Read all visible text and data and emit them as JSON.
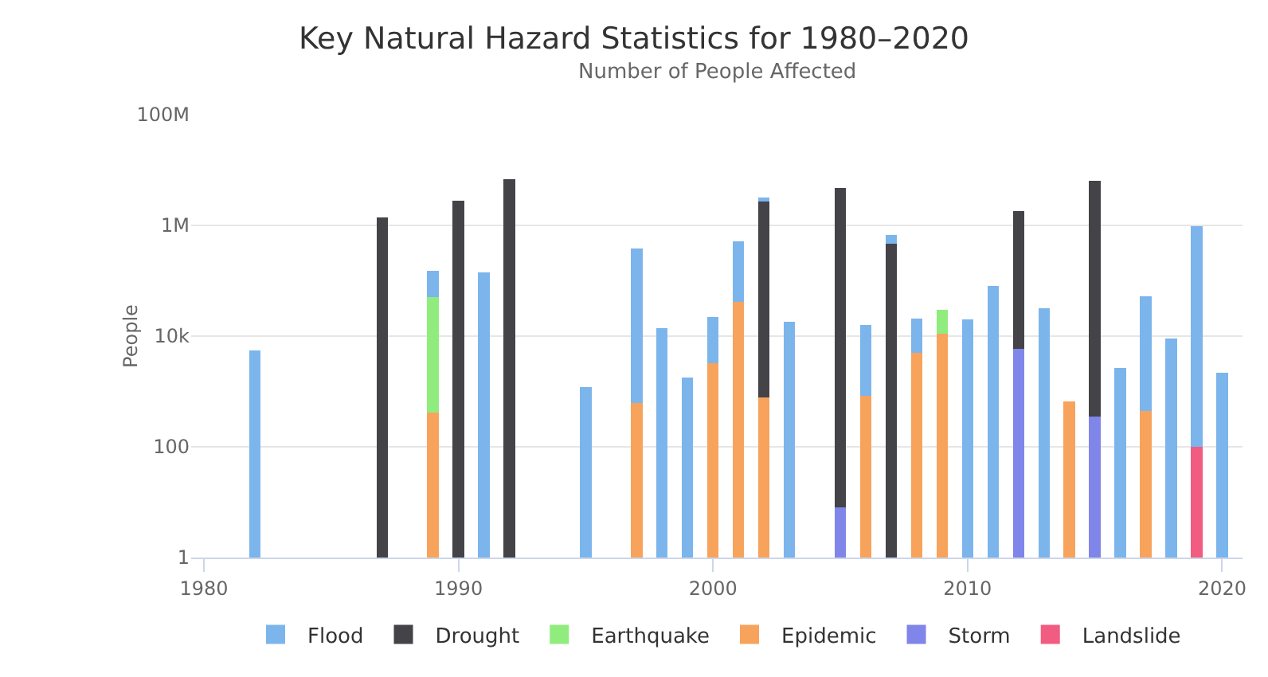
{
  "chart_data": {
    "type": "bar",
    "title": "Key Natural Hazard Statistics for 1980–2020",
    "subtitle": "Number of People Affected",
    "ylabel": "People",
    "x": [
      1982,
      1987,
      1989,
      1990,
      1991,
      1992,
      1995,
      1997,
      1998,
      1999,
      2000,
      2001,
      2002,
      2003,
      2005,
      2006,
      2007,
      2008,
      2009,
      2010,
      2011,
      2012,
      2013,
      2014,
      2015,
      2016,
      2017,
      2018,
      2019,
      2020
    ],
    "stacked": true,
    "log": "y",
    "grid": "y",
    "legend": "bottom",
    "xlim": [
      1979.5,
      2020.8
    ],
    "xticks": [
      1980,
      1990,
      2000,
      2010,
      2020
    ],
    "ylim": [
      1,
      100000000
    ],
    "yticks": [
      1,
      100,
      {
        "value": 10000,
        "label": "10k"
      },
      {
        "value": 1000000,
        "label": "1M"
      },
      {
        "value": 100000000,
        "label": "100M"
      }
    ],
    "series": [
      {
        "name": "Landslide",
        "color": "#f15c80",
        "values": [
          null,
          null,
          null,
          null,
          null,
          null,
          null,
          null,
          null,
          null,
          null,
          null,
          null,
          null,
          null,
          null,
          null,
          null,
          null,
          null,
          null,
          null,
          null,
          null,
          null,
          null,
          null,
          null,
          100,
          null
        ]
      },
      {
        "name": "Storm",
        "color": "#8085e9",
        "values": [
          null,
          null,
          null,
          null,
          null,
          null,
          null,
          null,
          null,
          null,
          null,
          null,
          null,
          null,
          8,
          null,
          null,
          null,
          null,
          null,
          null,
          5800,
          null,
          null,
          350,
          null,
          null,
          null,
          null,
          null
        ]
      },
      {
        "name": "Epidemic",
        "color": "#f7a35c",
        "values": [
          null,
          null,
          420,
          null,
          null,
          null,
          null,
          620,
          null,
          null,
          3200,
          41000,
          770,
          null,
          null,
          820,
          null,
          5000,
          11000,
          null,
          null,
          null,
          null,
          660,
          null,
          null,
          440,
          null,
          null,
          null
        ]
      },
      {
        "name": "Earthquake",
        "color": "#90ed7d",
        "values": [
          null,
          null,
          50000,
          null,
          null,
          null,
          null,
          null,
          null,
          null,
          null,
          null,
          null,
          null,
          null,
          null,
          null,
          null,
          19000,
          null,
          null,
          null,
          null,
          null,
          null,
          null,
          null,
          null,
          null,
          null
        ]
      },
      {
        "name": "Drought",
        "color": "#434348",
        "values": [
          null,
          1400000,
          null,
          2800000,
          null,
          6800000,
          null,
          null,
          null,
          null,
          null,
          null,
          2700000,
          null,
          4800000,
          null,
          460000,
          null,
          null,
          null,
          null,
          1800000,
          null,
          null,
          6300000,
          null,
          null,
          null,
          null,
          null
        ]
      },
      {
        "name": "Flood",
        "color": "#7cb5ec",
        "values": [
          5500,
          null,
          100000,
          null,
          140000,
          null,
          1200,
          380000,
          14000,
          1800,
          19000,
          480000,
          500000,
          18000,
          null,
          15000,
          220000,
          16000,
          null,
          20000,
          80000,
          null,
          32000,
          null,
          null,
          2700,
          52000,
          9000,
          960000,
          2200
        ]
      }
    ]
  }
}
